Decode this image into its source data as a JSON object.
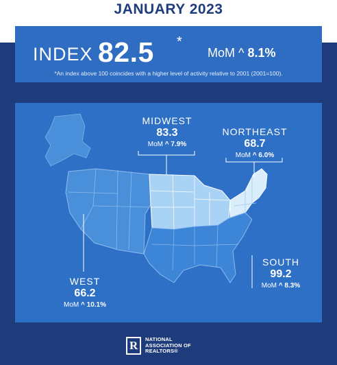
{
  "header": {
    "title": "JANUARY 2023"
  },
  "index": {
    "label": "INDEX",
    "value": "82.5",
    "asterisk": "*",
    "mom_label": "MoM",
    "mom_arrow": "^",
    "mom_value": "8.1%",
    "footnote": "*An index above 100 coincides with a higher level of activity relative to 2001 (2001=100)."
  },
  "regions": {
    "midwest": {
      "name": "MIDWEST",
      "value": "83.3",
      "mom_label": "MoM",
      "mom_arrow": "^",
      "mom_value": "7.9%"
    },
    "northeast": {
      "name": "NORTHEAST",
      "value": "68.7",
      "mom_label": "MoM",
      "mom_arrow": "^",
      "mom_value": "6.0%"
    },
    "west": {
      "name": "WEST",
      "value": "66.2",
      "mom_label": "MoM",
      "mom_arrow": "^",
      "mom_value": "10.1%"
    },
    "south": {
      "name": "SOUTH",
      "value": "99.2",
      "mom_label": "MoM",
      "mom_arrow": "^",
      "mom_value": "8.3%"
    }
  },
  "logo": {
    "mark": "R",
    "line1": "NATIONAL",
    "line2": "ASSOCIATION OF",
    "line3": "REALTORS®"
  },
  "colors": {
    "navy": "#1e3b7c",
    "card_blue": "#2e6dc2",
    "west": "#4a8fd9",
    "midwest": "#a9d3f4",
    "northeast": "#d9edfb",
    "south": "#3d85d6"
  }
}
